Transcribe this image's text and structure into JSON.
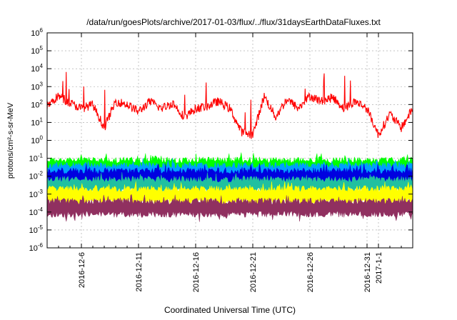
{
  "chart_data": {
    "type": "line",
    "title": "/data/run/goesPlots/archive/2017-01-03/flux/../flux/31daysEarthDataFluxes.txt",
    "xlabel": "Coordinated Universal Time (UTC)",
    "ylabel": "protons/cm²-s-sr-MeV",
    "yscale": "log",
    "ylim": [
      1e-06,
      1000000.0
    ],
    "xlim": [
      "2016-12-03",
      "2017-01-04"
    ],
    "grid": true,
    "y_ticks": [
      {
        "base": "10",
        "exp": "6"
      },
      {
        "base": "10",
        "exp": "5"
      },
      {
        "base": "10",
        "exp": "4"
      },
      {
        "base": "10",
        "exp": "3"
      },
      {
        "base": "10",
        "exp": "2"
      },
      {
        "base": "10",
        "exp": "1"
      },
      {
        "base": "10",
        "exp": "0"
      },
      {
        "base": "10",
        "exp": "-1"
      },
      {
        "base": "10",
        "exp": "-2"
      },
      {
        "base": "10",
        "exp": "-3"
      },
      {
        "base": "10",
        "exp": "-4"
      },
      {
        "base": "10",
        "exp": "-5"
      },
      {
        "base": "10",
        "exp": "-6"
      }
    ],
    "x_ticks": [
      {
        "date": "2016-12-06",
        "label": "2016-12-6"
      },
      {
        "date": "2016-12-11",
        "label": "2016-12-11"
      },
      {
        "date": "2016-12-16",
        "label": "2016-12-16"
      },
      {
        "date": "2016-12-21",
        "label": "2016-12-21"
      },
      {
        "date": "2016-12-26",
        "label": "2016-12-26"
      },
      {
        "date": "2016-12-31",
        "label": "2016-12-31"
      },
      {
        "date": "2017-01-01",
        "label": "2017-1-1"
      }
    ],
    "series": [
      {
        "color": "#ff0000",
        "x": [
          "2016-12-03",
          "2016-12-04",
          "2016-12-05",
          "2016-12-06",
          "2016-12-07",
          "2016-12-08",
          "2016-12-09",
          "2016-12-10",
          "2016-12-11",
          "2016-12-12",
          "2016-12-13",
          "2016-12-14",
          "2016-12-15",
          "2016-12-16",
          "2016-12-17",
          "2016-12-18",
          "2016-12-19",
          "2016-12-20",
          "2016-12-21",
          "2016-12-22",
          "2016-12-23",
          "2016-12-24",
          "2016-12-25",
          "2016-12-26",
          "2016-12-27",
          "2016-12-28",
          "2016-12-29",
          "2016-12-30",
          "2016-12-31",
          "2017-01-01",
          "2017-01-02",
          "2017-01-03",
          "2017-01-04"
        ],
        "y": [
          80,
          300,
          120,
          60,
          100,
          5,
          150,
          100,
          40,
          150,
          60,
          120,
          20,
          60,
          80,
          150,
          60,
          3,
          2,
          300,
          20,
          200,
          60,
          300,
          150,
          250,
          60,
          150,
          60,
          2,
          30,
          5,
          60
        ]
      },
      {
        "color": "#00ff00",
        "band": [
          0.01,
          0.12
        ]
      },
      {
        "color": "#00a0ff",
        "band": [
          0.004,
          0.06
        ]
      },
      {
        "color": "#0000e0",
        "band": [
          0.002,
          0.03
        ]
      },
      {
        "color": "#20c0a0",
        "band": [
          0.001,
          0.01
        ]
      },
      {
        "color": "#ffff00",
        "band": [
          0.00025,
          0.003
        ]
      },
      {
        "color": "#903060",
        "band": [
          5e-05,
          0.0006
        ]
      }
    ]
  }
}
